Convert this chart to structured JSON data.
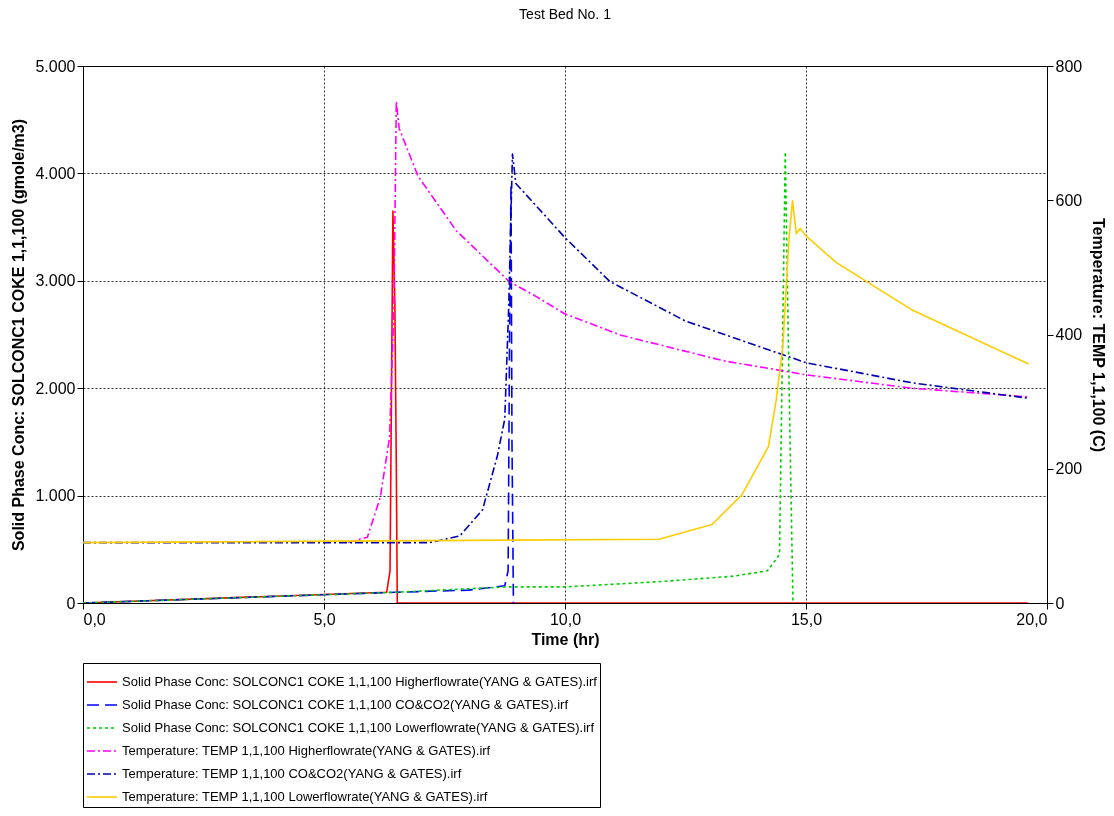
{
  "chart_data": {
    "type": "line",
    "title": "Test Bed No. 1",
    "xlabel": "Time (hr)",
    "ylabel": "Solid Phase Conc: SOLCONC1 COKE 1,1,100 (gmole/m3)",
    "y2label": "Temperature:  TEMP 1,1,100 (C)",
    "xlim": [
      0,
      20
    ],
    "xticks": [
      {
        "value": 0,
        "label": "0,0"
      },
      {
        "value": 5,
        "label": "5,0"
      },
      {
        "value": 10,
        "label": "10,0"
      },
      {
        "value": 15,
        "label": "15,0"
      },
      {
        "value": 20,
        "label": "20,0"
      }
    ],
    "ylim": [
      0,
      5000
    ],
    "yticks": [
      0,
      {
        "value": 1000,
        "label": "1.000"
      },
      {
        "value": 2000,
        "label": "2.000"
      },
      {
        "value": 3000,
        "label": "3.000"
      },
      {
        "value": 4000,
        "label": "4.000"
      },
      {
        "value": 5000,
        "label": "5.000"
      }
    ],
    "y2lim": [
      0,
      800
    ],
    "y2ticks": [
      0,
      200,
      400,
      600,
      800
    ],
    "grid": true,
    "legend": "bottom",
    "marker": "none",
    "series": [
      {
        "name": "Solid Phase Conc: SOLCONC1 COKE 1,1,100 Higherflowrate(YANG & GATES).irf",
        "color": "#ff0000",
        "line_style": "solid",
        "x": [
          0,
          6.3,
          6.37,
          6.43,
          6.47,
          6.5,
          6.52,
          19.6
        ],
        "values": [
          0,
          100,
          300,
          3650,
          2800,
          1300,
          0,
          0
        ]
      },
      {
        "name": "Solid Phase Conc: SOLCONC1 COKE 1,1,100 CO&CO2(YANG & GATES).irf",
        "color": "#0000ff",
        "line_style": "dashed",
        "x": [
          0,
          6.5,
          8,
          8.75,
          8.82,
          8.85,
          8.88,
          8.9,
          8.93
        ],
        "values": [
          0,
          100,
          120,
          160,
          300,
          2500,
          3900,
          1500,
          0
        ]
      },
      {
        "name": "Solid Phase Conc: SOLCONC1 COKE 1,1,100 Lowerflowrate(YANG & GATES).irf",
        "color": "#00cc00",
        "line_style": "dotted",
        "x": [
          0,
          6.5,
          8.8,
          10,
          12,
          13.5,
          14.2,
          14.45,
          14.5,
          14.57,
          14.65,
          14.73
        ],
        "values": [
          0,
          100,
          150,
          150,
          200,
          250,
          300,
          450,
          2000,
          4200,
          2000,
          0
        ]
      },
      {
        "name": "Temperature: TEMP 1,1,100 Higherflowrate(YANG & GATES).irf",
        "color": "#ff00ff",
        "line_style": "dashdot",
        "axis": "y2",
        "x": [
          5.5,
          5.9,
          6.17,
          6.36,
          6.45,
          6.5,
          6.56,
          6.95,
          7.74,
          8.84,
          9.37,
          9.99,
          11.16,
          13.28,
          15,
          17.19,
          19.62
        ],
        "values": [
          90,
          98,
          158,
          247,
          437,
          747,
          707,
          636,
          555,
          479,
          458,
          431,
          399,
          361,
          340,
          320,
          307
        ]
      },
      {
        "name": "Temperature: TEMP 1,1,100 CO&CO2(YANG & GATES).irf",
        "color": "#0000b0",
        "line_style": "dashdot",
        "axis": "y2",
        "x": [
          0,
          7.19,
          7.82,
          8.29,
          8.6,
          8.75,
          8.83,
          8.91,
          8.98,
          9.79,
          9.99,
          10.93,
          12.5,
          15,
          17.2,
          19.62
        ],
        "values": [
          90,
          90,
          100,
          139,
          220,
          274,
          436,
          669,
          625,
          561,
          545,
          479,
          420,
          358,
          328,
          305
        ]
      },
      {
        "name": "Temperature: TEMP 1,1,100 Lowerflowrate(YANG & GATES).irf",
        "color": "#ffcc00",
        "line_style": "solid",
        "axis": "y2",
        "x": [
          0,
          11.95,
          13.05,
          13.67,
          14.22,
          14.38,
          14.52,
          14.65,
          14.72,
          14.8,
          14.88,
          15,
          15.63,
          17.19,
          19.62
        ],
        "values": [
          90,
          95,
          117,
          161,
          233,
          301,
          383,
          545,
          599,
          550,
          558,
          547,
          507,
          437,
          356
        ]
      }
    ]
  }
}
